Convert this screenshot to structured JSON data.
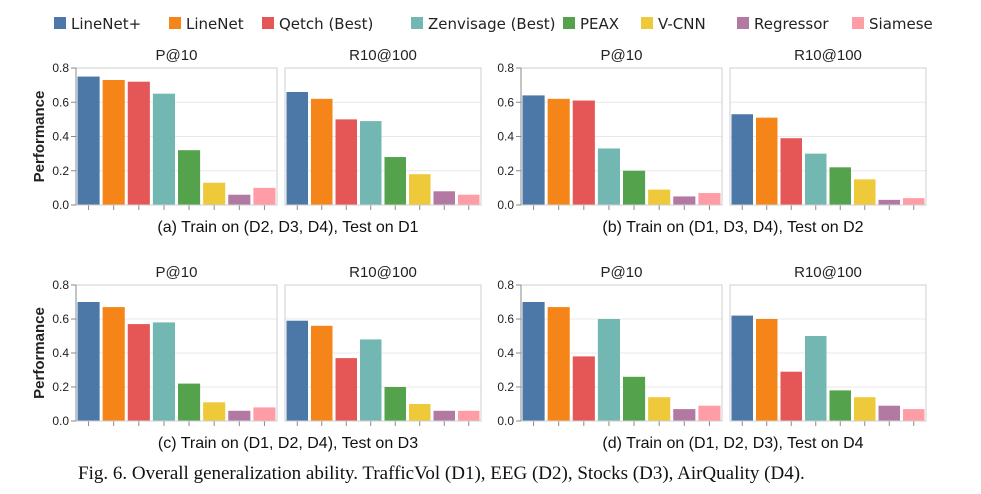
{
  "chart_data": {
    "type": "bar",
    "legend": {
      "placement": "top",
      "entries": [
        {
          "name": "LineNet+",
          "color": "#4c78a8"
        },
        {
          "name": "LineNet",
          "color": "#f58518"
        },
        {
          "name": "Qetch (Best)",
          "color": "#e45756"
        },
        {
          "name": "Zenvisage (Best)",
          "color": "#72b7b2"
        },
        {
          "name": "PEAX",
          "color": "#54a24b"
        },
        {
          "name": "V-CNN",
          "color": "#eeca3b"
        },
        {
          "name": "Regressor",
          "color": "#b279a2"
        },
        {
          "name": "Siamese",
          "color": "#ff9da6"
        }
      ]
    },
    "ylabel": "Performance",
    "ylim": [
      0,
      0.8
    ],
    "yticks": [
      "0.0",
      "0.2",
      "0.4",
      "0.6",
      "0.8"
    ],
    "grid": true,
    "groups": [
      {
        "caption": "(a) Train on (D2, D3, D4), Test on D1",
        "panels": [
          {
            "title": "P@10",
            "values": [
              0.75,
              0.73,
              0.72,
              0.65,
              0.32,
              0.13,
              0.06,
              0.1
            ]
          },
          {
            "title": "R10@100",
            "values": [
              0.66,
              0.62,
              0.5,
              0.49,
              0.28,
              0.18,
              0.08,
              0.06
            ]
          }
        ]
      },
      {
        "caption": "(b) Train on (D1, D3, D4), Test on D2",
        "panels": [
          {
            "title": "P@10",
            "values": [
              0.64,
              0.62,
              0.61,
              0.33,
              0.2,
              0.09,
              0.05,
              0.07
            ]
          },
          {
            "title": "R10@100",
            "values": [
              0.53,
              0.51,
              0.39,
              0.3,
              0.22,
              0.15,
              0.03,
              0.04
            ]
          }
        ]
      },
      {
        "caption": "(c) Train on (D1, D2, D4), Test on D3",
        "panels": [
          {
            "title": "P@10",
            "values": [
              0.7,
              0.67,
              0.57,
              0.58,
              0.22,
              0.11,
              0.06,
              0.08
            ]
          },
          {
            "title": "R10@100",
            "values": [
              0.59,
              0.56,
              0.37,
              0.48,
              0.2,
              0.1,
              0.06,
              0.06
            ]
          }
        ]
      },
      {
        "caption": "(d) Train on (D1, D2, D3), Test on D4",
        "panels": [
          {
            "title": "P@10",
            "values": [
              0.7,
              0.67,
              0.38,
              0.6,
              0.26,
              0.14,
              0.07,
              0.09
            ]
          },
          {
            "title": "R10@100",
            "values": [
              0.62,
              0.6,
              0.29,
              0.5,
              0.18,
              0.14,
              0.09,
              0.07
            ]
          }
        ]
      }
    ]
  },
  "figure_caption": "Fig. 6.  Overall generalization ability. TrafficVol (D1), EEG (D2), Stocks (D3), AirQuality (D4)."
}
